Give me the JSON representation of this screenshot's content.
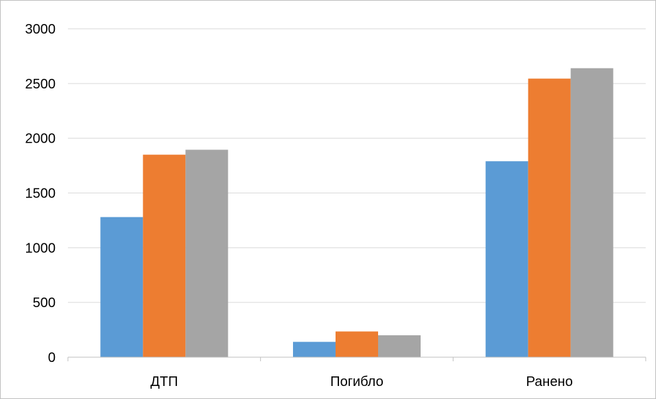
{
  "chart_data": {
    "type": "bar",
    "categories": [
      "ДТП",
      "Погибло",
      "Ранено"
    ],
    "series": [
      {
        "color": "#5b9bd5",
        "values": [
          1280,
          140,
          1790
        ]
      },
      {
        "color": "#ed7d31",
        "values": [
          1850,
          235,
          2545
        ]
      },
      {
        "color": "#a5a5a5",
        "values": [
          1895,
          200,
          2640
        ]
      }
    ],
    "ylim": [
      0,
      3000
    ],
    "yticks": [
      "0",
      "500",
      "1000",
      "1500",
      "2000",
      "2500",
      "3000"
    ],
    "grid": true,
    "gridline_color": "#d9d9d9",
    "axis_color": "#bfbfbf",
    "title": "",
    "xlabel": "",
    "ylabel": ""
  }
}
